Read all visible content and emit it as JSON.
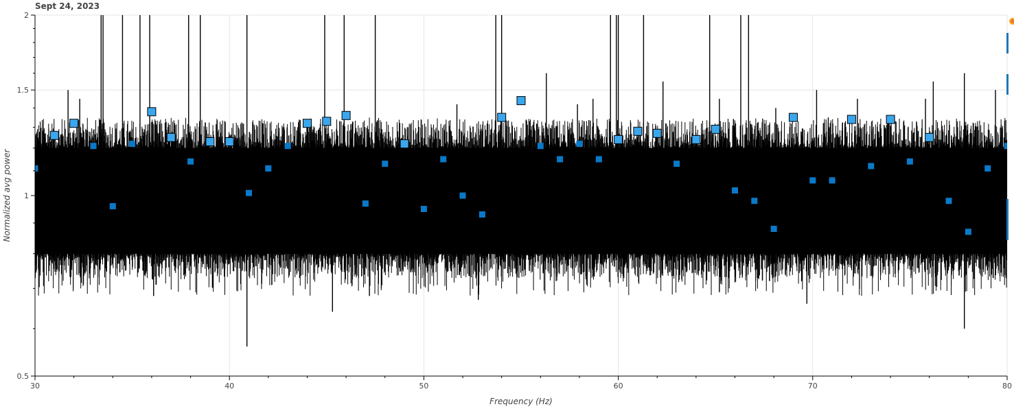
{
  "title": "Sept 24, 2023",
  "toolbar": {
    "logo_icon": "bokeh-logo-icon",
    "accent": "#1f77b4"
  },
  "colors": {
    "trace": "#000000",
    "marker_fill_small": "#0a79c8",
    "marker_fill_large": "#3aa6ee",
    "marker_edge": "#000000",
    "grid": "#e5e5e5"
  },
  "chart_data": {
    "type": "line",
    "xlabel": "Frequency (Hz)",
    "ylabel": "Normalized avg power",
    "xlim": [
      30,
      80
    ],
    "ylim": [
      0.5,
      2
    ],
    "yscale": "log",
    "grid": true,
    "x_ticks": [
      "30",
      "40",
      "50",
      "60",
      "70",
      "80"
    ],
    "y_ticks": [
      "0.5",
      "1",
      "1.5",
      "2"
    ],
    "series": [
      {
        "type": "line",
        "description_points": "dense noise trace",
        "baseline": {
          "median": 0.92,
          "lower": 0.8,
          "upper": 1.2
        },
        "spikes": [
          {
            "x": 33.4,
            "y": 2.0
          },
          {
            "x": 33.5,
            "y": 2.0
          },
          {
            "x": 34.5,
            "y": 2.0
          },
          {
            "x": 35.4,
            "y": 2.0
          },
          {
            "x": 35.9,
            "y": 2.0
          },
          {
            "x": 38.5,
            "y": 2.0
          },
          {
            "x": 40.9,
            "y": 2.0
          },
          {
            "x": 44.9,
            "y": 2.0
          },
          {
            "x": 45.9,
            "y": 2.0
          },
          {
            "x": 47.5,
            "y": 2.0
          },
          {
            "x": 53.7,
            "y": 2.0
          },
          {
            "x": 54.0,
            "y": 2.0
          },
          {
            "x": 56.3,
            "y": 1.6
          },
          {
            "x": 58.7,
            "y": 1.45
          },
          {
            "x": 59.6,
            "y": 2.0
          },
          {
            "x": 59.9,
            "y": 2.0
          },
          {
            "x": 60.0,
            "y": 2.0
          },
          {
            "x": 61.3,
            "y": 2.0
          },
          {
            "x": 62.3,
            "y": 1.55
          },
          {
            "x": 64.7,
            "y": 2.0
          },
          {
            "x": 65.2,
            "y": 1.45
          },
          {
            "x": 66.3,
            "y": 2.0
          },
          {
            "x": 66.7,
            "y": 2.0
          },
          {
            "x": 70.2,
            "y": 1.5
          },
          {
            "x": 70.8,
            "y": 1.35
          },
          {
            "x": 72.3,
            "y": 1.45
          },
          {
            "x": 75.8,
            "y": 1.45
          },
          {
            "x": 76.2,
            "y": 1.55
          },
          {
            "x": 77.8,
            "y": 1.6
          },
          {
            "x": 79.4,
            "y": 1.5
          },
          {
            "x": 31.7,
            "y": 1.5
          },
          {
            "x": 32.3,
            "y": 1.45
          },
          {
            "x": 37.9,
            "y": 2.0
          },
          {
            "x": 51.7,
            "y": 1.42
          },
          {
            "x": 57.9,
            "y": 1.42
          },
          {
            "x": 68.1,
            "y": 1.4
          }
        ],
        "dips": [
          {
            "x": 40.9,
            "y": 0.56
          },
          {
            "x": 45.3,
            "y": 0.64
          },
          {
            "x": 52.8,
            "y": 0.67
          },
          {
            "x": 69.7,
            "y": 0.66
          },
          {
            "x": 77.8,
            "y": 0.6
          },
          {
            "x": 47.2,
            "y": 0.68
          },
          {
            "x": 36.1,
            "y": 0.68
          },
          {
            "x": 65.2,
            "y": 0.69
          }
        ]
      },
      {
        "type": "scatter",
        "marker": "square",
        "x": [
          30,
          31,
          32,
          33,
          34,
          35,
          36,
          37,
          38,
          39,
          40,
          41,
          42,
          43,
          44,
          45,
          46,
          47,
          48,
          49,
          50,
          51,
          52,
          53,
          54,
          55,
          56,
          57,
          58,
          59,
          60,
          61,
          62,
          63,
          64,
          65,
          66,
          67,
          68,
          69,
          70,
          71,
          72,
          73,
          74,
          75,
          76,
          77,
          78,
          79,
          80
        ],
        "y": [
          1.11,
          1.26,
          1.32,
          1.21,
          0.96,
          1.22,
          1.38,
          1.25,
          1.14,
          1.23,
          1.23,
          1.01,
          1.11,
          1.21,
          1.32,
          1.33,
          1.36,
          0.97,
          1.13,
          1.22,
          0.95,
          1.15,
          1.0,
          0.93,
          1.35,
          1.44,
          1.21,
          1.15,
          1.22,
          1.15,
          1.24,
          1.28,
          1.27,
          1.13,
          1.24,
          1.29,
          1.02,
          0.98,
          0.88,
          1.35,
          1.06,
          1.06,
          1.34,
          1.12,
          1.34,
          1.14,
          1.25,
          0.98,
          0.87,
          1.11,
          1.21
        ],
        "size": [
          "small",
          "large",
          "large",
          "small",
          "small",
          "small",
          "large",
          "large",
          "small",
          "large",
          "large",
          "small",
          "small",
          "small",
          "large",
          "large",
          "large",
          "small",
          "small",
          "large",
          "small",
          "small",
          "small",
          "small",
          "large",
          "large",
          "small",
          "small",
          "small",
          "small",
          "large",
          "large",
          "large",
          "small",
          "large",
          "large",
          "small",
          "small",
          "small",
          "large",
          "small",
          "small",
          "large",
          "small",
          "large",
          "small",
          "large",
          "small",
          "small",
          "small",
          "small"
        ]
      }
    ]
  }
}
